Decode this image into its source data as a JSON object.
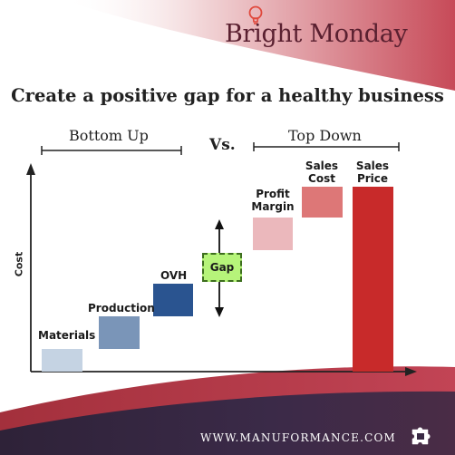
{
  "brand": {
    "name": "Bright Monday",
    "icon": "lightbulb-icon"
  },
  "headline": "Create a positive gap for a healthy business",
  "headers": {
    "left": "Bottom Up",
    "middle": "Vs.",
    "right": "Top Down"
  },
  "axis": {
    "ylabel": "Cost"
  },
  "bars": [
    {
      "id": "materials",
      "label": "Materials",
      "color": "#c5d3e3"
    },
    {
      "id": "production",
      "label": "Production",
      "color": "#7a95b8"
    },
    {
      "id": "ovh",
      "label": "OVH",
      "color": "#2a5490"
    },
    {
      "id": "profit-margin",
      "label_line1": "Profit",
      "label_line2": "Margin",
      "color": "#ebb8bc"
    },
    {
      "id": "sales-cost",
      "label_line1": "Sales",
      "label_line2": "Cost",
      "color": "#dd7777"
    },
    {
      "id": "sales-price",
      "label_line1": "Sales",
      "label_line2": "Price",
      "color": "#c82a2a"
    }
  ],
  "gap": {
    "label": "Gap",
    "color": "#b6f47a"
  },
  "footer": {
    "website": "WWW.MANUFORMANCE.COM",
    "icon": "puzzle-icon",
    "color": "#3a2a45"
  }
}
